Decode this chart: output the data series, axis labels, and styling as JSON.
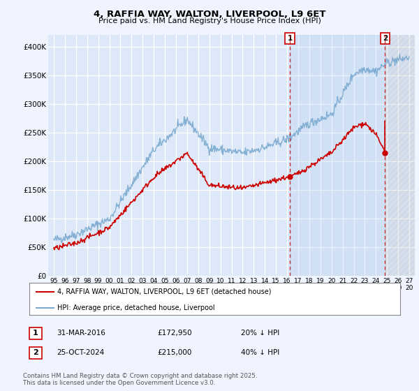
{
  "title_line1": "4, RAFFIA WAY, WALTON, LIVERPOOL, L9 6ET",
  "title_line2": "Price paid vs. HM Land Registry's House Price Index (HPI)",
  "background_color": "#f0f4ff",
  "plot_bg_color": "#dde8f8",
  "grid_color": "#ffffff",
  "hpi_color": "#7aaad0",
  "price_color": "#cc0000",
  "shade_color": "#ccddf0",
  "marker1_date": 2016.25,
  "marker1_price": 172950,
  "marker2_date": 2024.82,
  "marker2_price": 215000,
  "ylim_min": 0,
  "ylim_max": 420000,
  "xlim_min": 1994.5,
  "xlim_max": 2027.5,
  "yticks": [
    0,
    50000,
    100000,
    150000,
    200000,
    250000,
    300000,
    350000,
    400000
  ],
  "ytick_labels": [
    "£0",
    "£50K",
    "£100K",
    "£150K",
    "£200K",
    "£250K",
    "£300K",
    "£350K",
    "£400K"
  ],
  "xtick_years": [
    1995,
    1996,
    1997,
    1998,
    1999,
    2000,
    2001,
    2002,
    2003,
    2004,
    2005,
    2006,
    2007,
    2008,
    2009,
    2010,
    2011,
    2012,
    2013,
    2014,
    2015,
    2016,
    2017,
    2018,
    2019,
    2020,
    2021,
    2022,
    2023,
    2024,
    2025,
    2026,
    2027
  ],
  "legend_label1": "4, RAFFIA WAY, WALTON, LIVERPOOL, L9 6ET (detached house)",
  "legend_label2": "HPI: Average price, detached house, Liverpool",
  "footnote": "Contains HM Land Registry data © Crown copyright and database right 2025.\nThis data is licensed under the Open Government Licence v3.0.",
  "table_row1": [
    "1",
    "31-MAR-2016",
    "£172,950",
    "20% ↓ HPI"
  ],
  "table_row2": [
    "2",
    "25-OCT-2024",
    "£215,000",
    "40% ↓ HPI"
  ]
}
